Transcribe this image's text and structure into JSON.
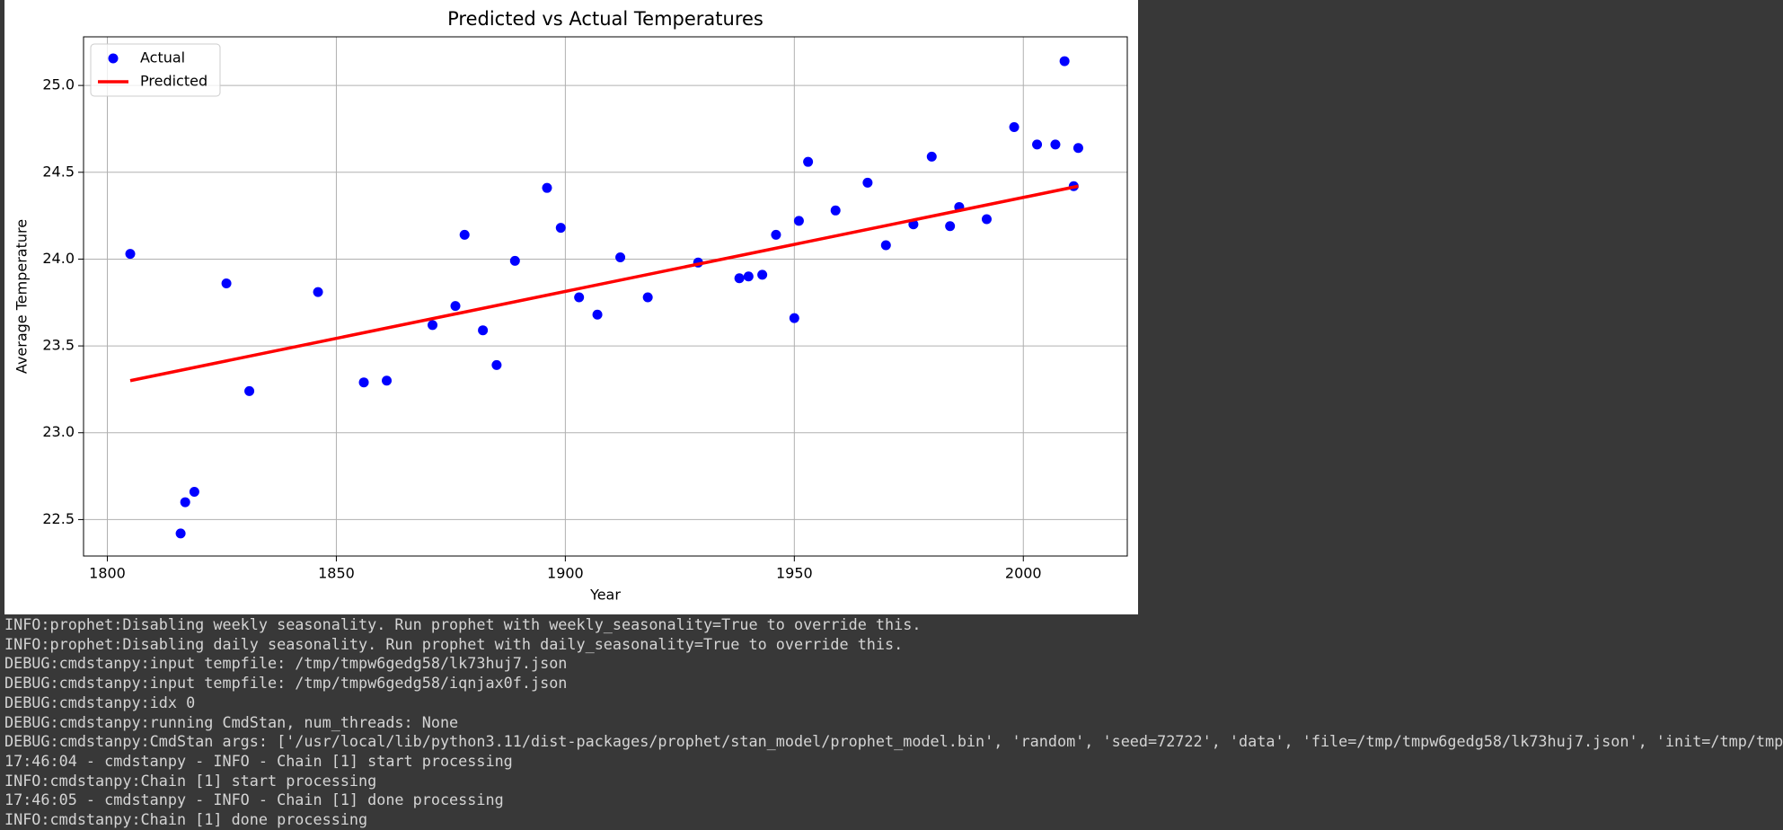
{
  "chart_data": {
    "type": "scatter",
    "title": "Predicted vs Actual Temperatures",
    "x_label": "Year",
    "y_label": "Average Temperature",
    "xlim": [
      1794.8,
      2022.7
    ],
    "ylim": [
      22.29,
      25.28
    ],
    "xticks": [
      1800,
      1850,
      1900,
      1950,
      2000
    ],
    "yticks": [
      22.5,
      {
        "value": 23,
        "label": "23.0"
      },
      23.5,
      {
        "value": 24,
        "label": "24.0"
      },
      24.5,
      {
        "value": 25,
        "label": "25.0"
      }
    ],
    "grid": true,
    "legend": "upper left",
    "series": [
      {
        "name": "Actual",
        "type": "scatter",
        "color": "#0000ff",
        "x": [
          1805,
          1816,
          1817,
          1819,
          1826,
          1831,
          1846,
          1856,
          1861,
          1871,
          1876,
          1878,
          1882,
          1885,
          1889,
          1896,
          1899,
          1903,
          1907,
          1912,
          1918,
          1929,
          1938,
          1940,
          1943,
          1946,
          1950,
          1951,
          1953,
          1959,
          1966,
          1970,
          1976,
          1980,
          1984,
          1986,
          1992,
          1998,
          2003,
          2007,
          2009,
          2011,
          2012
        ],
        "values": [
          24.03,
          22.42,
          22.6,
          22.66,
          23.86,
          23.24,
          23.81,
          23.29,
          23.3,
          23.62,
          23.73,
          24.14,
          23.59,
          23.39,
          23.99,
          24.41,
          24.18,
          23.78,
          23.68,
          24.01,
          23.78,
          23.98,
          23.89,
          23.9,
          23.91,
          24.14,
          23.66,
          24.22,
          24.56,
          24.28,
          24.44,
          24.08,
          24.2,
          24.59,
          24.19,
          24.3,
          24.23,
          24.76,
          24.66,
          24.66,
          25.14,
          24.42,
          24.64
        ]
      },
      {
        "name": "Predicted",
        "type": "line",
        "color": "#ff0000",
        "x": [
          1805,
          2012
        ],
        "values": [
          23.3,
          24.42
        ]
      }
    ]
  },
  "log_lines": [
    "INFO:prophet:Disabling weekly seasonality. Run prophet with weekly_seasonality=True to override this.",
    "INFO:prophet:Disabling daily seasonality. Run prophet with daily_seasonality=True to override this.",
    "DEBUG:cmdstanpy:input tempfile: /tmp/tmpw6gedg58/lk73huj7.json",
    "DEBUG:cmdstanpy:input tempfile: /tmp/tmpw6gedg58/iqnjax0f.json",
    "DEBUG:cmdstanpy:idx 0",
    "DEBUG:cmdstanpy:running CmdStan, num_threads: None",
    "DEBUG:cmdstanpy:CmdStan args: ['/usr/local/lib/python3.11/dist-packages/prophet/stan_model/prophet_model.bin', 'random', 'seed=72722', 'data', 'file=/tmp/tmpw6gedg58/lk73huj7.json', 'init=/tmp/tmp",
    "17:46:04 - cmdstanpy - INFO - Chain [1] start processing",
    "INFO:cmdstanpy:Chain [1] start processing",
    "17:46:05 - cmdstanpy - INFO - Chain [1] done processing",
    "INFO:cmdstanpy:Chain [1] done processing"
  ]
}
